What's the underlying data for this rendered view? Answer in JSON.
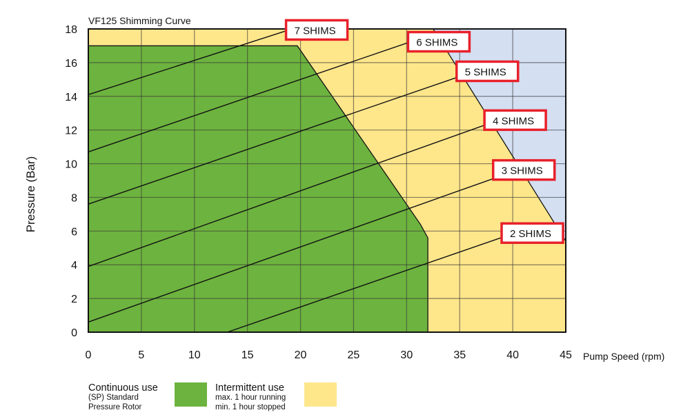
{
  "chart_data": {
    "type": "area",
    "title": "VF125 Shimming Curve",
    "xlabel": "Pump Speed (rpm)",
    "ylabel": "Pressure (Bar)",
    "xlim": [
      0,
      45
    ],
    "ylim": [
      0,
      18
    ],
    "xticks": [
      0,
      5,
      10,
      15,
      20,
      25,
      30,
      35,
      40,
      45
    ],
    "yticks": [
      0,
      2,
      4,
      6,
      8,
      10,
      12,
      14,
      16,
      18
    ],
    "grid": true,
    "colors": {
      "continuous": "#6db33f",
      "intermittent": "#fee68b",
      "outside": "#d4dff2",
      "label_border": "#e8202a"
    },
    "regions": [
      {
        "name": "continuous",
        "points": [
          [
            0,
            0
          ],
          [
            0,
            17
          ],
          [
            19.7,
            17
          ],
          [
            31.3,
            6.4
          ],
          [
            32,
            5.6
          ],
          [
            32,
            0
          ]
        ]
      },
      {
        "name": "outside",
        "points": [
          [
            32.5,
            18
          ],
          [
            45,
            18
          ],
          [
            45,
            5.4
          ]
        ]
      }
    ],
    "series": [
      {
        "name": "2 SHIMS",
        "points": [
          [
            13.1,
            0
          ],
          [
            39.8,
            5.8
          ]
        ]
      },
      {
        "name": "3 SHIMS",
        "points": [
          [
            0,
            0.6
          ],
          [
            39,
            9.3
          ]
        ]
      },
      {
        "name": "4 SHIMS",
        "points": [
          [
            0,
            3.9
          ],
          [
            37.4,
            12.3
          ]
        ]
      },
      {
        "name": "5 SHIMS",
        "points": [
          [
            0,
            7.6
          ],
          [
            35.1,
            15.2
          ]
        ]
      },
      {
        "name": "6 SHIMS",
        "points": [
          [
            0,
            10.7
          ],
          [
            30.2,
            17.2
          ]
        ]
      },
      {
        "name": "7 SHIMS",
        "points": [
          [
            0,
            14.1
          ],
          [
            18.7,
            17.9
          ]
        ]
      }
    ],
    "legend": {
      "placement": "bottom-left",
      "entries": [
        {
          "title": "Continuous use",
          "lines": [
            "(SP) Standard",
            "Pressure Rotor"
          ],
          "color": "#6db33f"
        },
        {
          "title": "Intermittent use",
          "lines": [
            "max. 1 hour running",
            "min. 1 hour stopped"
          ],
          "color": "#fee68b"
        }
      ]
    }
  }
}
